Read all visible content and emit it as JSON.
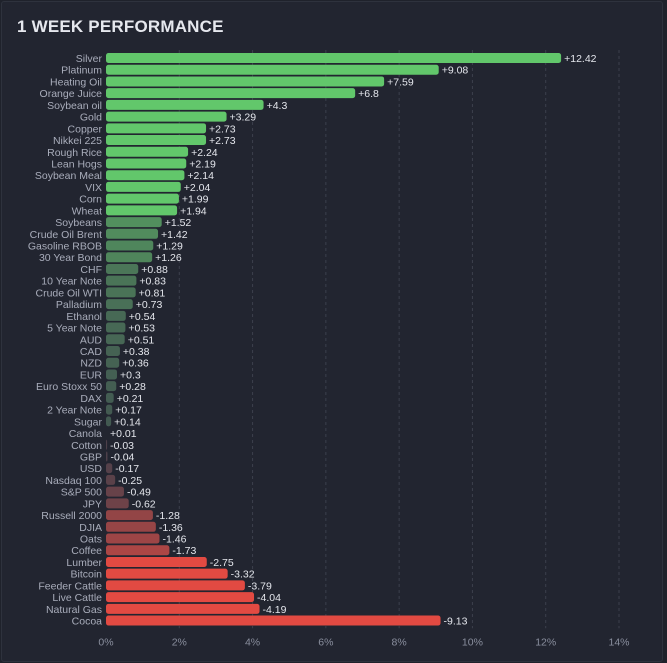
{
  "chart_data": {
    "type": "bar",
    "orientation": "horizontal",
    "title": "1 WEEK PERFORMANCE",
    "xlabel": "",
    "ylabel": "",
    "xlim": [
      0,
      14
    ],
    "x_ticks": [
      "0%",
      "2%",
      "4%",
      "6%",
      "8%",
      "10%",
      "12%",
      "14%"
    ],
    "bar_length": "absolute value",
    "grid": true,
    "colors": {
      "positive": "#62c76b",
      "negative": "#e24a42",
      "neutral": "#3b3f4b"
    },
    "categories": [
      "Silver",
      "Platinum",
      "Heating Oil",
      "Orange Juice",
      "Soybean oil",
      "Gold",
      "Copper",
      "Nikkei 225",
      "Rough Rice",
      "Lean Hogs",
      "Soybean Meal",
      "VIX",
      "Corn",
      "Wheat",
      "Soybeans",
      "Crude Oil Brent",
      "Gasoline RBOB",
      "30 Year Bond",
      "CHF",
      "10 Year Note",
      "Crude Oil WTI",
      "Palladium",
      "Ethanol",
      "5 Year Note",
      "AUD",
      "CAD",
      "NZD",
      "EUR",
      "Euro Stoxx 50",
      "DAX",
      "2 Year Note",
      "Sugar",
      "Canola",
      "Cotton",
      "GBP",
      "USD",
      "Nasdaq 100",
      "S&P 500",
      "JPY",
      "Russell 2000",
      "DJIA",
      "Oats",
      "Coffee",
      "Lumber",
      "Bitcoin",
      "Feeder Cattle",
      "Live Cattle",
      "Natural Gas",
      "Cocoa"
    ],
    "values": [
      12.42,
      9.08,
      7.59,
      6.8,
      4.3,
      3.29,
      2.73,
      2.73,
      2.24,
      2.19,
      2.14,
      2.04,
      1.99,
      1.94,
      1.52,
      1.42,
      1.29,
      1.26,
      0.88,
      0.83,
      0.81,
      0.73,
      0.54,
      0.53,
      0.51,
      0.38,
      0.36,
      0.3,
      0.28,
      0.21,
      0.17,
      0.14,
      0.01,
      -0.03,
      -0.04,
      -0.17,
      -0.25,
      -0.49,
      -0.62,
      -1.28,
      -1.36,
      -1.46,
      -1.73,
      -2.75,
      -3.32,
      -3.79,
      -4.04,
      -4.19,
      -9.13
    ],
    "value_labels": [
      "+12.42",
      "+9.08",
      "+7.59",
      "+6.8",
      "+4.3",
      "+3.29",
      "+2.73",
      "+2.73",
      "+2.24",
      "+2.19",
      "+2.14",
      "+2.04",
      "+1.99",
      "+1.94",
      "+1.52",
      "+1.42",
      "+1.29",
      "+1.26",
      "+0.88",
      "+0.83",
      "+0.81",
      "+0.73",
      "+0.54",
      "+0.53",
      "+0.51",
      "+0.38",
      "+0.36",
      "+0.3",
      "+0.28",
      "+0.21",
      "+0.17",
      "+0.14",
      "+0.01",
      "-0.03",
      "-0.04",
      "-0.17",
      "-0.25",
      "-0.49",
      "-0.62",
      "-1.28",
      "-1.36",
      "-1.46",
      "-1.73",
      "-2.75",
      "-3.32",
      "-3.79",
      "-4.04",
      "-4.19",
      "-9.13"
    ]
  }
}
